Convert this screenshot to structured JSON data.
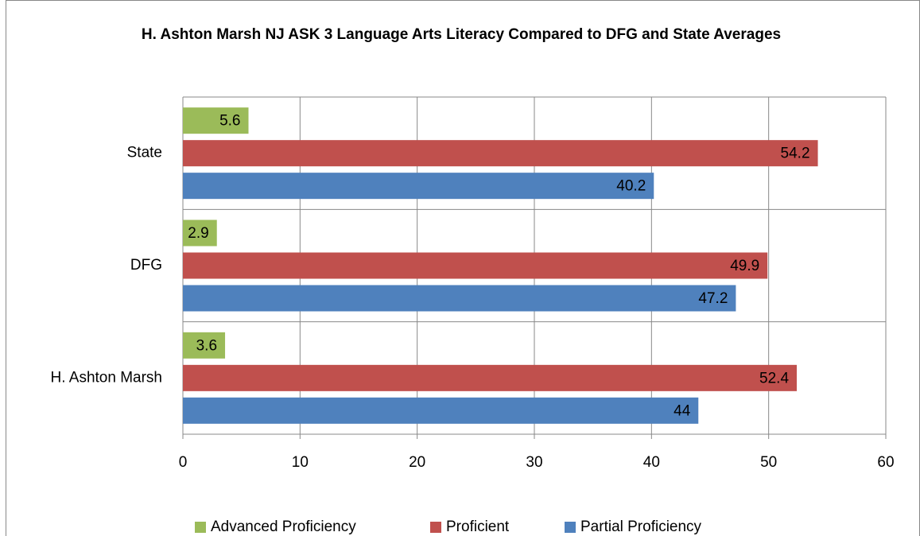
{
  "chart_data": {
    "type": "hbar",
    "title": "H. Ashton Marsh NJ ASK 3 Language Arts Literacy Compared to DFG and State Averages",
    "categories": [
      "H. Ashton Marsh",
      "DFG",
      "State"
    ],
    "series": [
      {
        "name": "Advanced Proficiency",
        "color": "#9bbb59",
        "values": [
          3.6,
          2.9,
          5.6
        ]
      },
      {
        "name": "Proficient",
        "color": "#c0504d",
        "values": [
          52.4,
          49.9,
          54.2
        ]
      },
      {
        "name": "Partial Proficiency",
        "color": "#4f81bd",
        "values": [
          44,
          47.2,
          40.2
        ]
      }
    ],
    "xlim": [
      0,
      60
    ],
    "xticks": [
      0,
      10,
      20,
      30,
      40,
      50,
      60
    ],
    "grid": true,
    "legend": "bottom"
  }
}
